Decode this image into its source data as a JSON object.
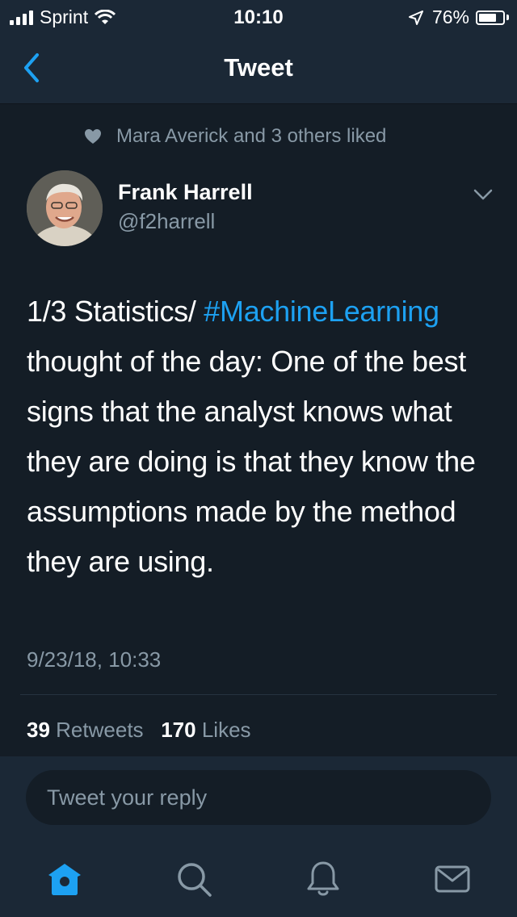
{
  "status_bar": {
    "carrier": "Sprint",
    "time": "10:10",
    "battery_percent": "76%",
    "battery_level": 0.76,
    "icons": [
      "signal-icon",
      "wifi-icon",
      "location-arrow-icon",
      "battery-icon"
    ]
  },
  "nav": {
    "title": "Tweet",
    "back_icon": "chevron-left-icon"
  },
  "tweet": {
    "social_context": "Mara Averick and 3 others liked",
    "author_name": "Frank Harrell",
    "author_handle": "@f2harrell",
    "text_before": "1/3 Statistics/ ",
    "hashtag": "#MachineLearning",
    "text_after": " thought of the day: One of the best signs that the analyst knows what they are doing is that they know the assumptions made by the method they are using.",
    "timestamp": "9/23/18, 10:33",
    "retweet_count": "39",
    "retweet_label": "Retweets",
    "like_count": "170",
    "like_label": "Likes"
  },
  "reply": {
    "placeholder": "Tweet your reply"
  },
  "tabs": [
    {
      "name": "home",
      "icon": "home-icon",
      "active": true
    },
    {
      "name": "search",
      "icon": "search-icon",
      "active": false
    },
    {
      "name": "notifications",
      "icon": "bell-icon",
      "active": false
    },
    {
      "name": "messages",
      "icon": "mail-icon",
      "active": false
    }
  ],
  "colors": {
    "background": "#141d26",
    "bar": "#1b2836",
    "accent": "#1da1f2",
    "muted": "#8899a6"
  }
}
